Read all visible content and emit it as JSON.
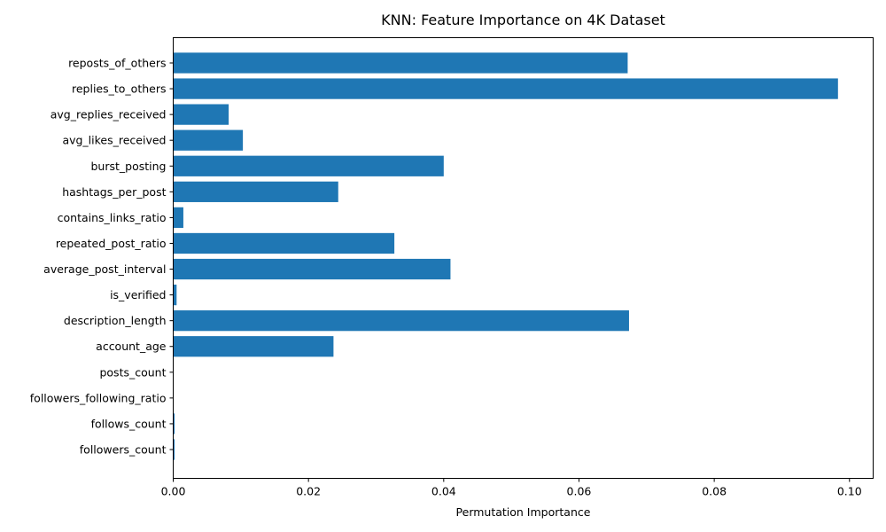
{
  "chart_data": {
    "type": "bar",
    "orientation": "horizontal",
    "title": "KNN: Feature Importance on 4K Dataset",
    "xlabel": "Permutation Importance",
    "ylabel": "",
    "xlim": [
      0,
      0.1035
    ],
    "xticks": [
      0.0,
      0.02,
      0.04,
      0.06,
      0.08,
      0.1
    ],
    "xtick_labels": [
      "0.00",
      "0.02",
      "0.04",
      "0.06",
      "0.08",
      "0.10"
    ],
    "grid": false,
    "bar_color": "#1f77b4",
    "categories": [
      "reposts_of_others",
      "replies_to_others",
      "avg_replies_received",
      "avg_likes_received",
      "burst_posting",
      "hashtags_per_post",
      "contains_links_ratio",
      "repeated_post_ratio",
      "average_post_interval",
      "is_verified",
      "description_length",
      "account_age",
      "posts_count",
      "followers_following_ratio",
      "follows_count",
      "followers_count"
    ],
    "values": [
      0.0672,
      0.0983,
      0.0082,
      0.0103,
      0.04,
      0.0244,
      0.0015,
      0.0327,
      0.041,
      0.0005,
      0.0674,
      0.0237,
      0.0,
      0.0,
      0.0002,
      0.0002
    ]
  }
}
